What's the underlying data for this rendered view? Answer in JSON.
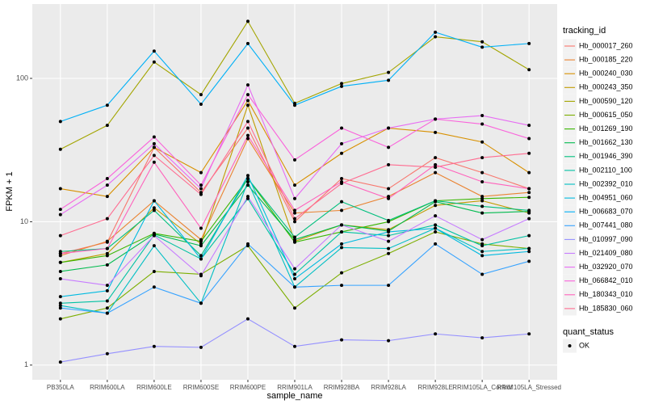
{
  "chart_data": {
    "type": "line",
    "log_y": true,
    "grid": true,
    "x_label": "sample_name",
    "y_label": "FPKM + 1",
    "legend_title": "tracking_id",
    "shape_legend": {
      "title": "quant_status",
      "entries": [
        "OK"
      ]
    },
    "categories": [
      "PB350LA",
      "RRIM600LA",
      "RRIM600LE",
      "RRIM600SE",
      "RRIM600PE",
      "RRIM901LA",
      "RRIM928BA",
      "RRIM928LA",
      "RRIM928LE",
      "RRIM105LA_Control",
      "RRIM105LA_Stressed"
    ],
    "ylim": [
      0.79,
      330
    ],
    "yticks": [
      1,
      10,
      100
    ],
    "series": [
      {
        "name": "Hb_000017_260",
        "color": "#F8766D",
        "values": [
          6,
          7.2,
          33,
          16,
          45,
          10,
          20,
          17,
          28,
          22,
          17
        ]
      },
      {
        "name": "Hb_000185_220",
        "color": "#EA8331",
        "values": [
          5.8,
          7.3,
          14,
          7.5,
          38,
          11.5,
          12,
          15,
          22,
          15,
          16
        ]
      },
      {
        "name": "Hb_000240_030",
        "color": "#D89000",
        "values": [
          17,
          15,
          33,
          22,
          70,
          18,
          30,
          45,
          42,
          36,
          22
        ]
      },
      {
        "name": "Hb_000243_350",
        "color": "#C09B00",
        "values": [
          5.2,
          6,
          12.5,
          7,
          65,
          7.3,
          9.5,
          8.8,
          13,
          14,
          11.5
        ]
      },
      {
        "name": "Hb_000590_120",
        "color": "#A3A500",
        "values": [
          32,
          47,
          130,
          77,
          250,
          67,
          92,
          110,
          195,
          180,
          115
        ]
      },
      {
        "name": "Hb_000615_050",
        "color": "#7CAE00",
        "values": [
          2.1,
          2.5,
          4.5,
          4.3,
          6.8,
          2.5,
          4.4,
          6,
          8.5,
          7,
          6.5
        ]
      },
      {
        "name": "Hb_001269_190",
        "color": "#39B600",
        "values": [
          5.2,
          5.8,
          8.3,
          7.3,
          20,
          7.2,
          8.5,
          10,
          14,
          14.5,
          14.8
        ]
      },
      {
        "name": "Hb_001662_130",
        "color": "#00BB4E",
        "values": [
          4.5,
          5,
          8.2,
          6.8,
          18,
          7.5,
          9.5,
          8.6,
          13.8,
          11.5,
          11.8
        ]
      },
      {
        "name": "Hb_001946_390",
        "color": "#00BF7D",
        "values": [
          6.2,
          6.5,
          12,
          5.8,
          20,
          7.8,
          13.8,
          10.2,
          14,
          12.8,
          12
        ]
      },
      {
        "name": "Hb_002110_100",
        "color": "#00C1A3",
        "values": [
          2.7,
          2.8,
          8.1,
          5.5,
          14.5,
          4.3,
          8.5,
          8,
          9.5,
          6.8,
          8
        ]
      },
      {
        "name": "Hb_002392_010",
        "color": "#00BFC4",
        "values": [
          2.6,
          2.3,
          6.8,
          2.7,
          19,
          3.5,
          6.6,
          6.5,
          9,
          6.2,
          6.5
        ]
      },
      {
        "name": "Hb_004951_060",
        "color": "#00BAE0",
        "values": [
          3,
          3.3,
          14,
          5.5,
          21,
          4,
          7,
          8.5,
          9,
          5.8,
          6.2
        ]
      },
      {
        "name": "Hb_006683_070",
        "color": "#00B0F6",
        "values": [
          50,
          65,
          155,
          66,
          175,
          65,
          88,
          97,
          210,
          165,
          175
        ]
      },
      {
        "name": "Hb_007441_080",
        "color": "#35A2FF",
        "values": [
          2.5,
          2.3,
          3.5,
          2.7,
          7,
          3.5,
          3.6,
          3.6,
          7,
          4.3,
          5.3
        ]
      },
      {
        "name": "Hb_010997_090",
        "color": "#9590FF",
        "values": [
          1.05,
          1.2,
          1.35,
          1.33,
          2.1,
          1.35,
          1.5,
          1.48,
          1.65,
          1.55,
          1.65
        ]
      },
      {
        "name": "Hb_021409_080",
        "color": "#C77CFF",
        "values": [
          4,
          3.6,
          8,
          4.2,
          15,
          4.7,
          9.5,
          7.3,
          11,
          7.5,
          10.5
        ]
      },
      {
        "name": "Hb_032920_070",
        "color": "#E76BF3",
        "values": [
          11.2,
          18,
          35,
          17,
          90,
          14.5,
          35,
          45,
          52,
          55,
          47
        ]
      },
      {
        "name": "Hb_066842_010",
        "color": "#FA62DB",
        "values": [
          12.2,
          20,
          39,
          18,
          77,
          27,
          45,
          33,
          52,
          48,
          38
        ]
      },
      {
        "name": "Hb_180343_010",
        "color": "#FF62BC",
        "values": [
          6,
          6.5,
          26,
          9,
          40,
          12,
          19,
          14.5,
          25,
          19,
          17
        ]
      },
      {
        "name": "Hb_185830_060",
        "color": "#FF6C91",
        "values": [
          8,
          10.5,
          29,
          15.5,
          50,
          10.5,
          18.5,
          25,
          24,
          28,
          30
        ]
      }
    ]
  }
}
